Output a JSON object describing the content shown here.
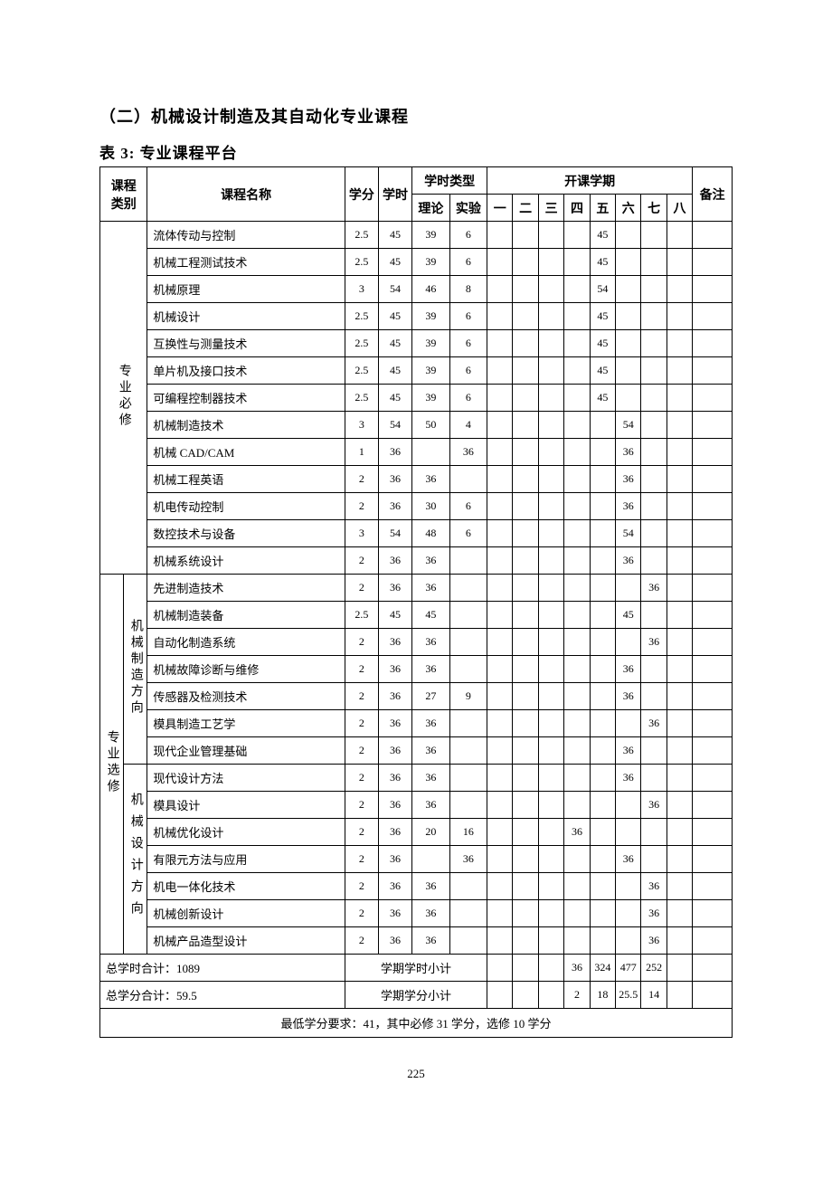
{
  "headings": {
    "section": "（二）机械设计制造及其自动化专业课程",
    "table_caption": "表 3:  专业课程平台"
  },
  "table": {
    "type": "table",
    "border_color": "#000000",
    "background_color": "#ffffff",
    "text_color": "#000000",
    "font_family": "SimSun",
    "header": {
      "category": "课程\n类别",
      "name": "课程名称",
      "credits": "学分",
      "hours": "学时",
      "hour_type": "学时类型",
      "theory": "理论",
      "experiment": "实验",
      "semesters_header": "开课学期",
      "semesters": [
        "一",
        "二",
        "三",
        "四",
        "五",
        "六",
        "七",
        "八"
      ],
      "remark": "备注"
    },
    "groups": [
      {
        "category_label": "专业必修",
        "sub_label": null,
        "rows": [
          {
            "name": "流体传动与控制",
            "credits": "2.5",
            "hours": "45",
            "theory": "39",
            "exp": "6",
            "sem": [
              "",
              "",
              "",
              "",
              "45",
              "",
              "",
              ""
            ]
          },
          {
            "name": "机械工程测试技术",
            "credits": "2.5",
            "hours": "45",
            "theory": "39",
            "exp": "6",
            "sem": [
              "",
              "",
              "",
              "",
              "45",
              "",
              "",
              ""
            ]
          },
          {
            "name": "机械原理",
            "credits": "3",
            "hours": "54",
            "theory": "46",
            "exp": "8",
            "sem": [
              "",
              "",
              "",
              "",
              "54",
              "",
              "",
              ""
            ]
          },
          {
            "name": "机械设计",
            "credits": "2.5",
            "hours": "45",
            "theory": "39",
            "exp": "6",
            "sem": [
              "",
              "",
              "",
              "",
              "45",
              "",
              "",
              ""
            ]
          },
          {
            "name": "互换性与测量技术",
            "credits": "2.5",
            "hours": "45",
            "theory": "39",
            "exp": "6",
            "sem": [
              "",
              "",
              "",
              "",
              "45",
              "",
              "",
              ""
            ]
          },
          {
            "name": "单片机及接口技术",
            "credits": "2.5",
            "hours": "45",
            "theory": "39",
            "exp": "6",
            "sem": [
              "",
              "",
              "",
              "",
              "45",
              "",
              "",
              ""
            ]
          },
          {
            "name": "可编程控制器技术",
            "credits": "2.5",
            "hours": "45",
            "theory": "39",
            "exp": "6",
            "sem": [
              "",
              "",
              "",
              "",
              "45",
              "",
              "",
              ""
            ]
          },
          {
            "name": "机械制造技术",
            "credits": "3",
            "hours": "54",
            "theory": "50",
            "exp": "4",
            "sem": [
              "",
              "",
              "",
              "",
              "",
              "54",
              "",
              ""
            ]
          },
          {
            "name": "机械 CAD/CAM",
            "credits": "1",
            "hours": "36",
            "theory": "",
            "exp": "36",
            "sem": [
              "",
              "",
              "",
              "",
              "",
              "36",
              "",
              ""
            ]
          },
          {
            "name": "机械工程英语",
            "credits": "2",
            "hours": "36",
            "theory": "36",
            "exp": "",
            "sem": [
              "",
              "",
              "",
              "",
              "",
              "36",
              "",
              ""
            ]
          },
          {
            "name": "机电传动控制",
            "credits": "2",
            "hours": "36",
            "theory": "30",
            "exp": "6",
            "sem": [
              "",
              "",
              "",
              "",
              "",
              "36",
              "",
              ""
            ]
          },
          {
            "name": "数控技术与设备",
            "credits": "3",
            "hours": "54",
            "theory": "48",
            "exp": "6",
            "sem": [
              "",
              "",
              "",
              "",
              "",
              "54",
              "",
              ""
            ]
          },
          {
            "name": "机械系统设计",
            "credits": "2",
            "hours": "36",
            "theory": "36",
            "exp": "",
            "sem": [
              "",
              "",
              "",
              "",
              "",
              "36",
              "",
              ""
            ]
          }
        ]
      },
      {
        "category_label": "专业选修",
        "subgroups": [
          {
            "sub_label": "机械制造方向",
            "rows": [
              {
                "name": "先进制造技术",
                "credits": "2",
                "hours": "36",
                "theory": "36",
                "exp": "",
                "sem": [
                  "",
                  "",
                  "",
                  "",
                  "",
                  "",
                  "36",
                  ""
                ]
              },
              {
                "name": "机械制造装备",
                "credits": "2.5",
                "hours": "45",
                "theory": "45",
                "exp": "",
                "sem": [
                  "",
                  "",
                  "",
                  "",
                  "",
                  "45",
                  "",
                  ""
                ]
              },
              {
                "name": "自动化制造系统",
                "credits": "2",
                "hours": "36",
                "theory": "36",
                "exp": "",
                "sem": [
                  "",
                  "",
                  "",
                  "",
                  "",
                  "",
                  "36",
                  ""
                ]
              },
              {
                "name": "机械故障诊断与维修",
                "credits": "2",
                "hours": "36",
                "theory": "36",
                "exp": "",
                "sem": [
                  "",
                  "",
                  "",
                  "",
                  "",
                  "36",
                  "",
                  ""
                ]
              },
              {
                "name": "传感器及检测技术",
                "credits": "2",
                "hours": "36",
                "theory": "27",
                "exp": "9",
                "sem": [
                  "",
                  "",
                  "",
                  "",
                  "",
                  "36",
                  "",
                  ""
                ]
              },
              {
                "name": "模具制造工艺学",
                "credits": "2",
                "hours": "36",
                "theory": "36",
                "exp": "",
                "sem": [
                  "",
                  "",
                  "",
                  "",
                  "",
                  "",
                  "36",
                  ""
                ]
              },
              {
                "name": "现代企业管理基础",
                "credits": "2",
                "hours": "36",
                "theory": "36",
                "exp": "",
                "sem": [
                  "",
                  "",
                  "",
                  "",
                  "",
                  "36",
                  "",
                  ""
                ]
              }
            ]
          },
          {
            "sub_label": "机械设计方向",
            "sub_label_spaced": true,
            "rows": [
              {
                "name": "现代设计方法",
                "credits": "2",
                "hours": "36",
                "theory": "36",
                "exp": "",
                "sem": [
                  "",
                  "",
                  "",
                  "",
                  "",
                  "36",
                  "",
                  ""
                ]
              },
              {
                "name": "模具设计",
                "credits": "2",
                "hours": "36",
                "theory": "36",
                "exp": "",
                "sem": [
                  "",
                  "",
                  "",
                  "",
                  "",
                  "",
                  "36",
                  ""
                ]
              },
              {
                "name": "机械优化设计",
                "credits": "2",
                "hours": "36",
                "theory": "20",
                "exp": "16",
                "sem": [
                  "",
                  "",
                  "",
                  "36",
                  "",
                  "",
                  "",
                  ""
                ]
              },
              {
                "name": "有限元方法与应用",
                "credits": "2",
                "hours": "36",
                "theory": "",
                "exp": "36",
                "sem": [
                  "",
                  "",
                  "",
                  "",
                  "",
                  "36",
                  "",
                  ""
                ]
              },
              {
                "name": "机电一体化技术",
                "credits": "2",
                "hours": "36",
                "theory": "36",
                "exp": "",
                "sem": [
                  "",
                  "",
                  "",
                  "",
                  "",
                  "",
                  "36",
                  ""
                ]
              },
              {
                "name": "机械创新设计",
                "credits": "2",
                "hours": "36",
                "theory": "36",
                "exp": "",
                "sem": [
                  "",
                  "",
                  "",
                  "",
                  "",
                  "",
                  "36",
                  ""
                ]
              },
              {
                "name": "机械产品造型设计",
                "credits": "2",
                "hours": "36",
                "theory": "36",
                "exp": "",
                "sem": [
                  "",
                  "",
                  "",
                  "",
                  "",
                  "",
                  "36",
                  ""
                ]
              }
            ]
          }
        ]
      }
    ],
    "summary": {
      "hours_total_label": "总学时合计：1089",
      "hours_subtotal_label": "学期学时小计",
      "hours_sem": [
        "",
        "",
        "",
        "36",
        "324",
        "477",
        "252",
        ""
      ],
      "credits_total_label": "总学分合计：59.5",
      "credits_subtotal_label": "学期学分小计",
      "credits_sem": [
        "",
        "",
        "",
        "2",
        "18",
        "25.5",
        "14",
        ""
      ],
      "footnote": "最低学分要求：41，其中必修 31 学分，选修 10 学分"
    }
  },
  "page_number": "225"
}
